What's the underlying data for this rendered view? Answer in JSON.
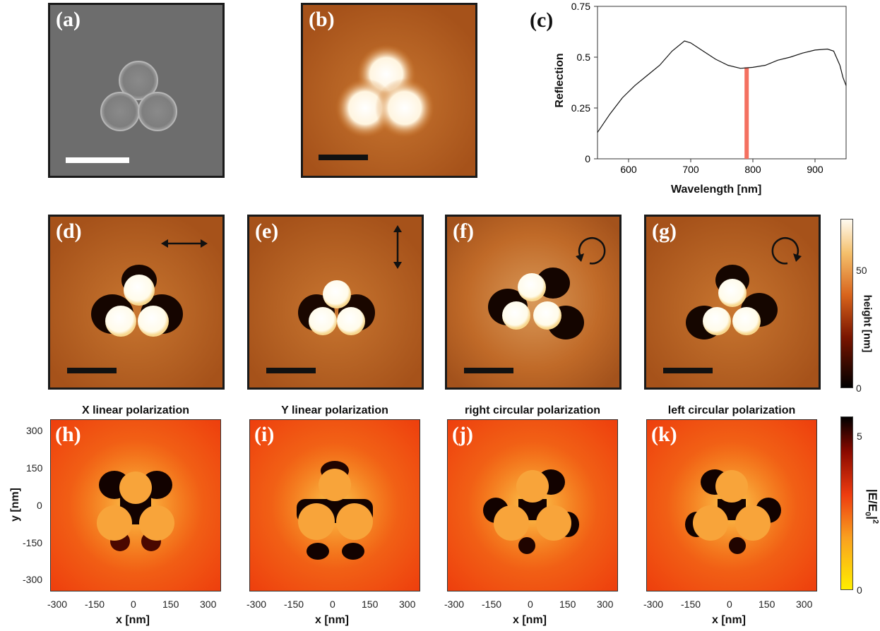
{
  "panels": {
    "a": "(a)",
    "b": "(b)",
    "c": "(c)",
    "d": "(d)",
    "e": "(e)",
    "f": "(f)",
    "g": "(g)",
    "h": "(h)",
    "i": "(i)",
    "j": "(j)",
    "k": "(k)"
  },
  "reflection_chart": {
    "chart_data": {
      "type": "line",
      "xlabel": "Wavelength [nm]",
      "ylabel": "Reflection",
      "xlim": [
        550,
        950
      ],
      "ylim": [
        0,
        0.75
      ],
      "xticks": [
        "600",
        "700",
        "800",
        "900"
      ],
      "yticks": [
        "0",
        "0.25",
        "0.5",
        "0.75"
      ],
      "series": [
        {
          "x": [
            550,
            570,
            590,
            610,
            630,
            650,
            670,
            690,
            700,
            720,
            740,
            760,
            780,
            800,
            820,
            840,
            860,
            880,
            900,
            920,
            930,
            940,
            945,
            950
          ],
          "y": [
            0.13,
            0.22,
            0.3,
            0.36,
            0.41,
            0.46,
            0.53,
            0.58,
            0.57,
            0.53,
            0.49,
            0.46,
            0.445,
            0.45,
            0.46,
            0.485,
            0.5,
            0.52,
            0.535,
            0.54,
            0.53,
            0.46,
            0.4,
            0.36
          ]
        }
      ],
      "highlight_band": {
        "x": 790,
        "color": "#f47060"
      }
    }
  },
  "height_colorbar": {
    "label": "height [nm]",
    "ticks": [
      "50",
      "0"
    ]
  },
  "field_maps": {
    "titles": [
      "X linear polarization",
      "Y linear polarization",
      "right circular polarization",
      "left circular polarization"
    ],
    "xlabel": "x [nm]",
    "ylabel": "y [nm]",
    "xticks": [
      "-300",
      "-150",
      "0",
      "150",
      "300"
    ],
    "yticks": [
      "300",
      "150",
      "0",
      "-150",
      "-300"
    ]
  },
  "field_colorbar": {
    "label_main": "|E/E",
    "label_sub": "0",
    "label_sup": "2",
    "ticks": [
      "5",
      "0"
    ]
  },
  "colors": {
    "sem_bg": "#6c6c6c",
    "afm_bg": "#b35a1f",
    "field_bg": "#f0440f",
    "particle": "#f9a33a"
  }
}
